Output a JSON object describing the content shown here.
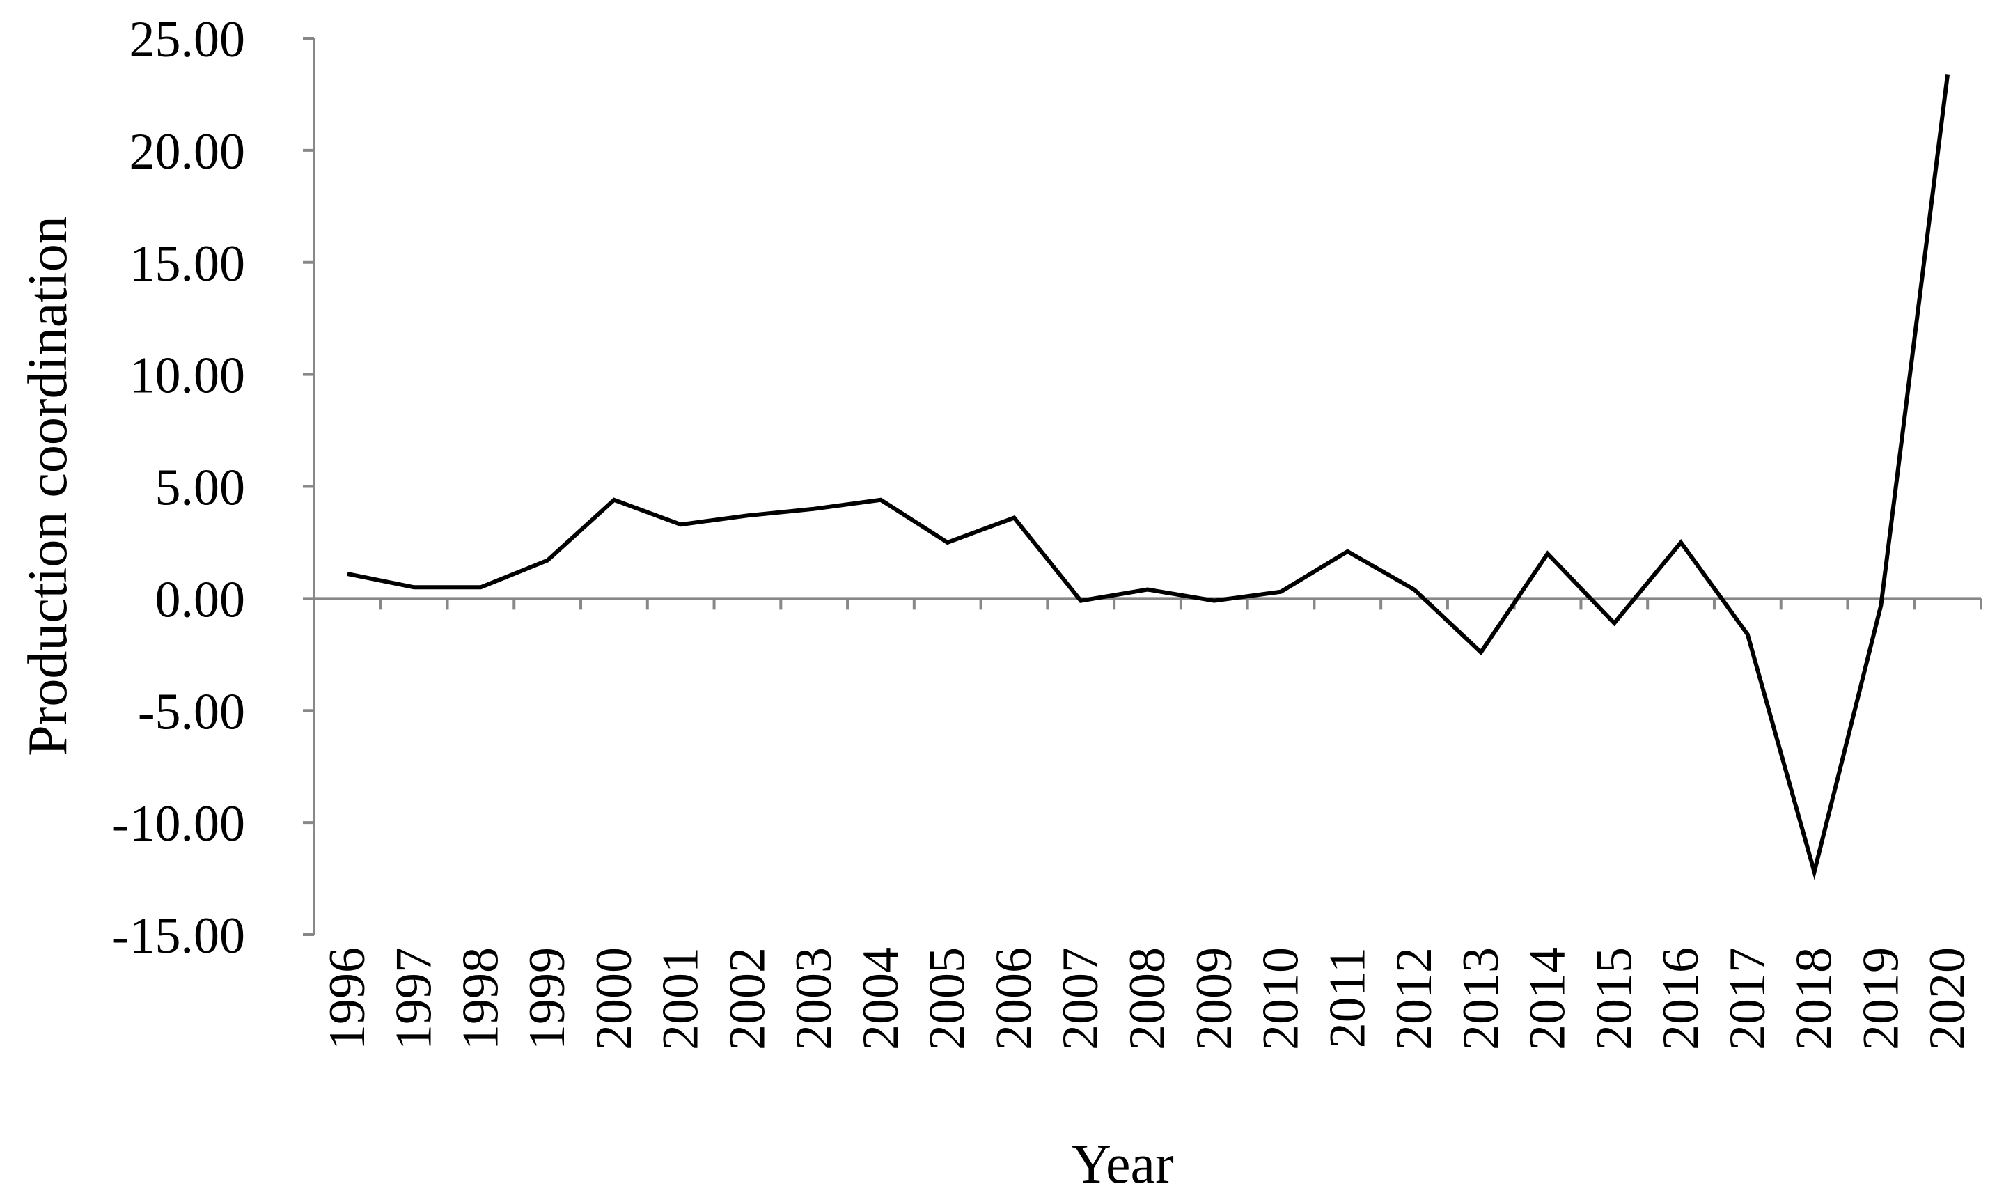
{
  "chart_data": {
    "type": "line",
    "xlabel": "Year",
    "ylabel": "Production coordination",
    "ylim": [
      -15,
      25
    ],
    "yticks": [
      "25.00",
      "20.00",
      "15.00",
      "10.00",
      "5.00",
      "0.00",
      "-5.00",
      "-10.00",
      "-15.00"
    ],
    "ytick_values": [
      25,
      20,
      15,
      10,
      5,
      0,
      -5,
      -10,
      -15
    ],
    "categories": [
      "1996",
      "1997",
      "1998",
      "1999",
      "2000",
      "2001",
      "2002",
      "2003",
      "2004",
      "2005",
      "2006",
      "2007",
      "2008",
      "2009",
      "2010",
      "2011",
      "2012",
      "2013",
      "2014",
      "2015",
      "2016",
      "2017",
      "2018",
      "2019",
      "2020"
    ],
    "series": [
      {
        "values": [
          1.1,
          0.5,
          0.5,
          1.7,
          4.4,
          3.3,
          3.7,
          4.0,
          4.4,
          2.5,
          3.6,
          -0.1,
          0.4,
          -0.1,
          0.3,
          2.1,
          0.4,
          -2.4,
          2.0,
          -1.1,
          2.5,
          -1.6,
          -12.2,
          -0.3,
          23.4
        ],
        "color": "#000000"
      }
    ],
    "grid": false,
    "legend": "none"
  }
}
